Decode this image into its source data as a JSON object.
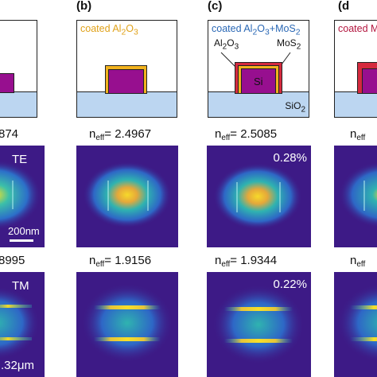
{
  "panels": {
    "a": {
      "neff_te_partial": "874",
      "neff_tm_partial": "8995",
      "te_label": "TE",
      "tm_label": "TM",
      "scalebar": "200nm",
      "dim_partial": ".32μm"
    },
    "b": {
      "label": "(b)",
      "title_pre": "coated Al",
      "title_sub1": "2",
      "title_mid": "O",
      "title_sub2": "3",
      "neff_te": "= 2.4967",
      "neff_tm": "= 1.9156"
    },
    "c": {
      "label": "(c)",
      "title_pre": "coated Al",
      "title_sub1": "2",
      "title_mid": "O",
      "title_sub2": "3",
      "title_plus": "+MoS",
      "title_sub3": "2",
      "al_pre": "Al",
      "al_sub1": "2",
      "al_mid": "O",
      "al_sub2": "3",
      "mos_pre": "MoS",
      "mos_sub": "2",
      "si": "Si",
      "sio_pre": "SiO",
      "sio_sub": "2",
      "neff_te": "= 2.5085",
      "neff_tm": "= 1.9344",
      "pct_te": "0.28%",
      "pct_tm": "0.22%"
    },
    "d": {
      "label": "(d",
      "title_partial": "coated M",
      "neff_te_partial": "n",
      "neff_tm_partial": "n"
    }
  },
  "neff_symbol": "n",
  "neff_sub": "eff",
  "colors": {
    "core": "#970f8f",
    "substrate": "#bcd6f1",
    "field_bg": "#3d1a86",
    "al2o3": "#f1b21e",
    "mos2": "#d52a3e",
    "title_b": "#e0a21a",
    "title_c": "#2a68b5",
    "title_d": "#b3163f"
  }
}
